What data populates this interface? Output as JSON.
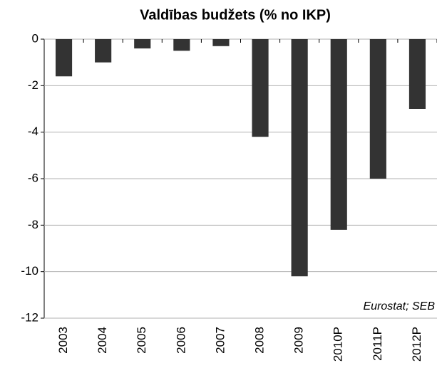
{
  "chart_data": {
    "type": "bar",
    "title": "Valdības budžets  (% no IKP)",
    "categories": [
      "2003",
      "2004",
      "2005",
      "2006",
      "2007",
      "2008",
      "2009",
      "2010P",
      "2011P",
      "2012P"
    ],
    "values": [
      -1.6,
      -1.0,
      -0.4,
      -0.5,
      -0.3,
      -4.2,
      -10.2,
      -8.2,
      -6.0,
      -3.0
    ],
    "color": "#333333",
    "ylim": [
      -12,
      0
    ],
    "yticks": [
      0,
      -2,
      -4,
      -6,
      -8,
      -10,
      -12
    ],
    "grid": true,
    "annotation": "Eurostat; SEB"
  }
}
